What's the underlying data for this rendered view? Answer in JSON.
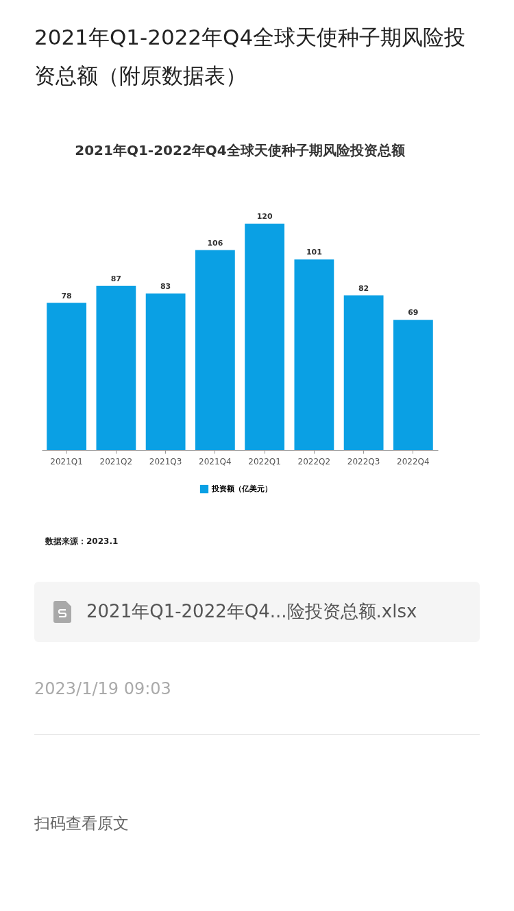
{
  "chart_data": {
    "type": "bar",
    "title": "2021年Q1-2022年Q4全球天使种子期风险投资总额",
    "categories": [
      "2021Q1",
      "2021Q2",
      "2021Q3",
      "2021Q4",
      "2022Q1",
      "2022Q2",
      "2022Q3",
      "2022Q4"
    ],
    "series": [
      {
        "name": "投资额（亿美元）",
        "color": "#0aa0e4",
        "values": [
          78,
          87,
          83,
          106,
          120,
          101,
          82,
          69
        ]
      }
    ],
    "data_labels": true,
    "legend": "bottom",
    "grid": false,
    "annotations": [
      "2021年Q1-2022年Q4全球天使种子期风险投资总额（附原数据表）",
      "数据来源：2023.1",
      "2021年Q1-2022年Q4...险投资总额.xlsx",
      "2023/1/19 09:03",
      "扫码查看原文"
    ]
  }
}
